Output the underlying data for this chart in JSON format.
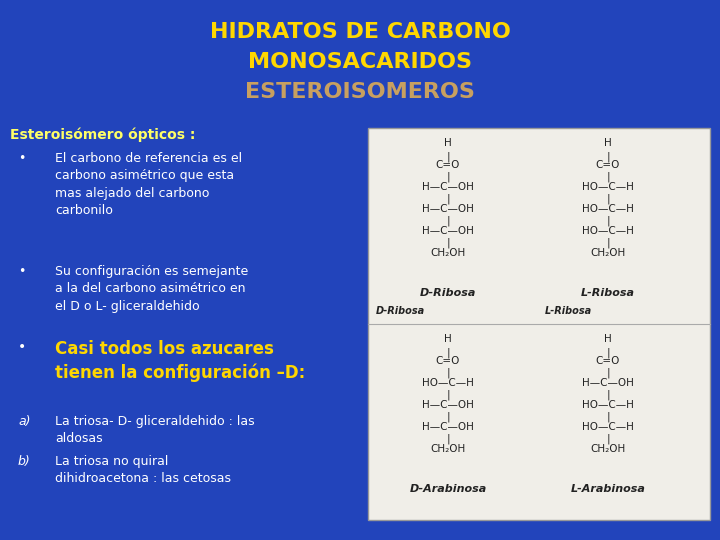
{
  "title_line1": "HIDRATOS DE CARBONO",
  "title_line2": "MONOSACARIDOS",
  "title_line3": "ESTEROISOMEROS",
  "title_color1": "#FFD700",
  "title_color2": "#FFD700",
  "title_color3": "#C8A060",
  "background_color": "#2244BB",
  "subtitle": "Esteroisómero ópticos :",
  "subtitle_color": "#FFFF66",
  "bullet1": "El carbono de referencia es el\ncarbono asimétrico que esta\nmas alejado del carbono\ncarbonilo",
  "bullet2": "Su configuración es semejante\na la del carbono asimétrico en\nel D o L- gliceraldehido",
  "bullet3_color": "#FFD700",
  "bullet3": "Casi todos los azucares\ntienen la configuración –D:",
  "item_a": "La triosa- D- gliceraldehido : las\naldosas",
  "item_b": "La triosa no quiral\ndihidroacetona : las cetosas",
  "text_color": "#FFFFFF",
  "label_a": "a)",
  "label_b": "b)",
  "figsize": [
    7.2,
    5.4
  ],
  "dpi": 100
}
